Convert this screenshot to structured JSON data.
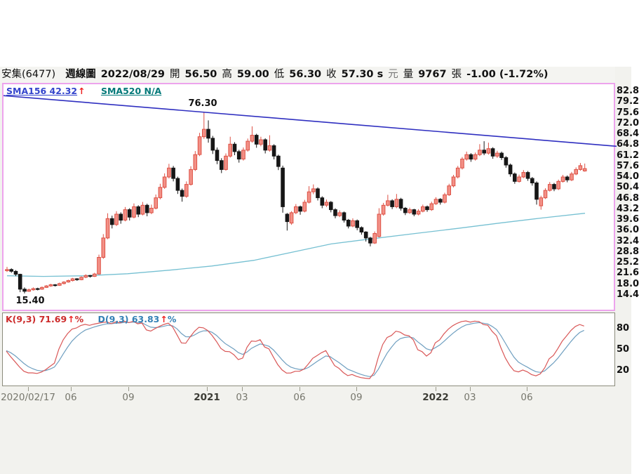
{
  "header": {
    "segments": [
      {
        "text": "安集(6477)",
        "bold": false
      },
      {
        "text": "週線圖",
        "bold": true
      },
      {
        "text": "2022/08/29",
        "bold": true
      },
      {
        "text": "開",
        "bold": false
      },
      {
        "text": "56.50",
        "bold": true
      },
      {
        "text": "高",
        "bold": false
      },
      {
        "text": "59.00",
        "bold": true
      },
      {
        "text": "低",
        "bold": false
      },
      {
        "text": "56.30",
        "bold": true
      },
      {
        "text": "收",
        "bold": false
      },
      {
        "text": "57.30 s",
        "bold": true
      },
      {
        "text": "元",
        "bold": false,
        "dim": true
      },
      {
        "text": "量",
        "bold": false
      },
      {
        "text": "9767",
        "bold": true
      },
      {
        "text": "張",
        "bold": false
      },
      {
        "text": "-1.00 (-1.72%)",
        "bold": true
      }
    ]
  },
  "overlays": {
    "sma156_label": "SMA156 42.32",
    "sma156_arrow": "↑",
    "sma520_label": "SMA520 N/A",
    "k_label": "K(9,3) 71.69",
    "k_arrow": "↑",
    "k_suffix": "%",
    "d_label": "D(9,3) 63.83",
    "d_arrow": "↑",
    "d_suffix": "%",
    "annotation_high": "76.30",
    "annotation_low": "15.40"
  },
  "colors": {
    "up_fill": "#f29086",
    "up_stroke": "#dd5044",
    "down_fill": "#161616",
    "down_stroke": "#161616",
    "sma_line": "#76c0d2",
    "trend_line": "#2f2fc0",
    "k_line": "#d95757",
    "d_line": "#6f9fc0",
    "chart_border": "#eda3ed",
    "kd_border": "#8b8b7c"
  },
  "chart_data": {
    "type": "candlestick",
    "symbol": "安集(6477)",
    "period": "週線圖",
    "last_date": "2022/08/29",
    "last_bar": {
      "open": 56.5,
      "high": 59.0,
      "low": 56.3,
      "close": 57.3,
      "volume_lots": 9767,
      "change": -1.0,
      "change_pct": -1.72
    },
    "series_high": 76.3,
    "series_low": 15.4,
    "price_axis_ticks": [
      82.8,
      79.2,
      75.6,
      72.0,
      68.4,
      64.8,
      61.2,
      57.6,
      54.0,
      50.4,
      46.8,
      43.2,
      39.6,
      36.0,
      32.4,
      28.8,
      25.2,
      21.6,
      18.0,
      14.4
    ],
    "kd_axis_ticks": [
      80,
      50,
      20
    ],
    "x_ticks": [
      {
        "label": "2020/02/17",
        "x": 40,
        "bold": false
      },
      {
        "label": "06",
        "x": 101,
        "bold": false
      },
      {
        "label": "09",
        "x": 183,
        "bold": false
      },
      {
        "label": "2021",
        "x": 295,
        "bold": true
      },
      {
        "label": "03",
        "x": 345,
        "bold": false
      },
      {
        "label": "06",
        "x": 427,
        "bold": false
      },
      {
        "label": "09",
        "x": 508,
        "bold": false
      },
      {
        "label": "2022",
        "x": 621,
        "bold": true
      },
      {
        "label": "03",
        "x": 670,
        "bold": false
      },
      {
        "label": "06",
        "x": 751,
        "bold": false
      }
    ],
    "candles_ohlc": [
      [
        23.0,
        24.3,
        22.6,
        23.4
      ],
      [
        23.4,
        23.8,
        22.3,
        22.8
      ],
      [
        22.8,
        23.2,
        21.2,
        21.8
      ],
      [
        21.8,
        22.0,
        15.8,
        16.8
      ],
      [
        16.8,
        17.4,
        15.4,
        16.1
      ],
      [
        16.1,
        17.0,
        15.9,
        16.6
      ],
      [
        16.6,
        17.4,
        16.3,
        17.0
      ],
      [
        17.0,
        17.3,
        16.4,
        16.8
      ],
      [
        16.8,
        17.7,
        16.6,
        17.4
      ],
      [
        17.4,
        18.2,
        17.2,
        17.9
      ],
      [
        17.9,
        18.6,
        17.6,
        18.3
      ],
      [
        18.3,
        18.5,
        17.7,
        18.1
      ],
      [
        18.1,
        19.0,
        17.9,
        18.7
      ],
      [
        18.7,
        19.5,
        18.4,
        19.2
      ],
      [
        19.2,
        20.0,
        19.0,
        19.7
      ],
      [
        19.7,
        20.6,
        19.4,
        20.3
      ],
      [
        20.3,
        20.5,
        19.6,
        20.0
      ],
      [
        20.0,
        21.1,
        19.8,
        20.8
      ],
      [
        20.8,
        21.8,
        20.5,
        21.4
      ],
      [
        21.4,
        21.6,
        20.7,
        21.1
      ],
      [
        21.1,
        22.3,
        20.9,
        21.9
      ],
      [
        21.9,
        28.4,
        21.7,
        27.5
      ],
      [
        27.5,
        35.3,
        27.0,
        34.0
      ],
      [
        34.0,
        42.3,
        33.6,
        40.5
      ],
      [
        40.5,
        41.5,
        37.2,
        38.5
      ],
      [
        38.5,
        43.0,
        38.0,
        42.0
      ],
      [
        42.0,
        42.6,
        38.8,
        40.0
      ],
      [
        40.0,
        44.4,
        39.6,
        43.5
      ],
      [
        43.5,
        44.0,
        39.9,
        41.0
      ],
      [
        41.0,
        45.6,
        40.6,
        44.5
      ],
      [
        44.5,
        45.0,
        41.0,
        42.0
      ],
      [
        42.0,
        46.1,
        41.6,
        45.0
      ],
      [
        45.0,
        45.5,
        41.3,
        42.5
      ],
      [
        42.5,
        45.2,
        42.0,
        44.0
      ],
      [
        44.0,
        48.6,
        43.6,
        47.5
      ],
      [
        47.5,
        52.2,
        47.0,
        51.0
      ],
      [
        51.0,
        55.7,
        50.5,
        54.5
      ],
      [
        54.5,
        58.9,
        54.0,
        57.5
      ],
      [
        57.5,
        58.2,
        53.0,
        54.0
      ],
      [
        54.0,
        54.6,
        48.8,
        50.0
      ],
      [
        50.0,
        50.6,
        46.2,
        48.0
      ],
      [
        48.0,
        53.0,
        47.5,
        52.0
      ],
      [
        52.0,
        58.1,
        51.6,
        57.0
      ],
      [
        57.0,
        63.2,
        56.5,
        62.0
      ],
      [
        62.0,
        69.3,
        61.5,
        68.0
      ],
      [
        68.0,
        76.3,
        67.3,
        70.5
      ],
      [
        70.5,
        73.5,
        66.0,
        67.5
      ],
      [
        67.5,
        68.3,
        62.2,
        63.5
      ],
      [
        63.5,
        64.4,
        58.8,
        60.0
      ],
      [
        60.0,
        60.8,
        55.8,
        57.0
      ],
      [
        57.0,
        62.4,
        56.6,
        61.5
      ],
      [
        61.5,
        68.0,
        61.0,
        65.5
      ],
      [
        65.5,
        66.2,
        61.8,
        63.0
      ],
      [
        63.0,
        63.6,
        59.3,
        60.5
      ],
      [
        60.5,
        64.4,
        60.0,
        63.5
      ],
      [
        63.5,
        67.4,
        63.0,
        66.5
      ],
      [
        66.5,
        71.5,
        66.0,
        68.5
      ],
      [
        68.5,
        69.0,
        64.3,
        65.5
      ],
      [
        65.5,
        68.0,
        64.8,
        67.0
      ],
      [
        67.0,
        67.5,
        62.4,
        63.5
      ],
      [
        63.5,
        68.5,
        63.0,
        65.0
      ],
      [
        65.0,
        65.5,
        60.4,
        61.5
      ],
      [
        61.5,
        62.0,
        56.8,
        58.0
      ],
      [
        57.5,
        58.3,
        42.5,
        44.5
      ],
      [
        42.0,
        42.4,
        36.5,
        39.5
      ],
      [
        39.0,
        43.0,
        38.4,
        42.5
      ],
      [
        42.5,
        45.4,
        42.0,
        44.5
      ],
      [
        44.5,
        44.9,
        41.8,
        43.0
      ],
      [
        43.0,
        46.8,
        42.6,
        46.0
      ],
      [
        46.0,
        51.4,
        45.6,
        49.5
      ],
      [
        49.5,
        52.0,
        48.7,
        50.5
      ],
      [
        50.5,
        51.0,
        46.6,
        47.5
      ],
      [
        47.5,
        48.0,
        44.0,
        45.0
      ],
      [
        45.0,
        46.9,
        44.4,
        46.0
      ],
      [
        46.0,
        46.4,
        42.6,
        43.5
      ],
      [
        43.5,
        44.0,
        40.6,
        41.5
      ],
      [
        41.5,
        43.3,
        41.0,
        42.5
      ],
      [
        42.5,
        42.9,
        39.2,
        40.0
      ],
      [
        40.0,
        40.4,
        37.2,
        38.0
      ],
      [
        38.0,
        40.6,
        37.6,
        39.8
      ],
      [
        39.8,
        40.2,
        36.6,
        37.5
      ],
      [
        37.5,
        37.9,
        35.1,
        36.0
      ],
      [
        36.0,
        36.3,
        32.8,
        34.0
      ],
      [
        34.0,
        34.4,
        31.2,
        32.3
      ],
      [
        32.3,
        36.2,
        32.0,
        35.5
      ],
      [
        34.5,
        44.0,
        34.2,
        42.0
      ],
      [
        42.0,
        45.8,
        41.5,
        45.0
      ],
      [
        45.0,
        48.5,
        44.6,
        46.5
      ],
      [
        46.5,
        47.0,
        43.7,
        44.5
      ],
      [
        44.5,
        48.8,
        44.0,
        47.0
      ],
      [
        47.0,
        47.5,
        43.2,
        44.0
      ],
      [
        44.0,
        44.4,
        41.7,
        42.5
      ],
      [
        42.5,
        44.2,
        42.1,
        43.5
      ],
      [
        43.5,
        43.8,
        41.3,
        42.0
      ],
      [
        42.0,
        43.7,
        41.6,
        43.0
      ],
      [
        43.0,
        45.2,
        42.6,
        44.5
      ],
      [
        44.5,
        44.9,
        42.8,
        43.5
      ],
      [
        43.5,
        46.2,
        43.1,
        45.5
      ],
      [
        45.5,
        47.7,
        45.1,
        47.0
      ],
      [
        47.0,
        47.4,
        45.2,
        46.0
      ],
      [
        46.0,
        49.2,
        45.6,
        48.5
      ],
      [
        48.5,
        52.2,
        48.1,
        51.5
      ],
      [
        51.5,
        55.2,
        51.0,
        54.5
      ],
      [
        54.5,
        58.2,
        54.0,
        57.5
      ],
      [
        57.5,
        61.2,
        57.0,
        60.5
      ],
      [
        60.5,
        63.0,
        60.0,
        62.0
      ],
      [
        62.0,
        62.5,
        59.6,
        60.5
      ],
      [
        60.5,
        62.7,
        60.0,
        62.0
      ],
      [
        62.0,
        65.5,
        61.5,
        63.5
      ],
      [
        63.5,
        66.5,
        61.8,
        62.5
      ],
      [
        62.5,
        66.0,
        62.0,
        64.0
      ],
      [
        64.0,
        64.5,
        60.6,
        61.5
      ],
      [
        61.5,
        63.3,
        60.9,
        62.5
      ],
      [
        62.5,
        63.0,
        60.2,
        61.0
      ],
      [
        61.0,
        61.5,
        57.6,
        58.5
      ],
      [
        58.5,
        59.0,
        54.6,
        55.5
      ],
      [
        55.5,
        56.0,
        52.2,
        53.0
      ],
      [
        53.0,
        55.3,
        52.6,
        54.5
      ],
      [
        54.5,
        56.8,
        54.1,
        56.0
      ],
      [
        56.0,
        56.5,
        53.2,
        54.0
      ],
      [
        54.0,
        54.5,
        51.6,
        52.5
      ],
      [
        52.5,
        53.0,
        45.2,
        47.0
      ],
      [
        44.8,
        48.2,
        43.5,
        47.5
      ],
      [
        47.5,
        50.7,
        47.1,
        50.0
      ],
      [
        50.0,
        52.8,
        49.6,
        52.0
      ],
      [
        52.0,
        52.5,
        49.7,
        50.5
      ],
      [
        50.5,
        53.6,
        50.1,
        53.0
      ],
      [
        53.0,
        55.2,
        52.6,
        54.5
      ],
      [
        54.5,
        55.0,
        52.7,
        53.5
      ],
      [
        53.5,
        56.2,
        53.1,
        55.5
      ],
      [
        55.5,
        57.7,
        55.1,
        57.0
      ],
      [
        57.0,
        59.2,
        56.6,
        58.3
      ],
      [
        56.5,
        59.0,
        56.3,
        57.3
      ]
    ],
    "sma156": {
      "last_value": 42.32,
      "points_x_price": [
        [
          8,
          21.3
        ],
        [
          60,
          21.1
        ],
        [
          120,
          21.3
        ],
        [
          180,
          22.0
        ],
        [
          240,
          23.2
        ],
        [
          300,
          24.6
        ],
        [
          360,
          26.5
        ],
        [
          420,
          29.5
        ],
        [
          470,
          32.0
        ],
        [
          530,
          33.8
        ],
        [
          590,
          35.5
        ],
        [
          650,
          37.2
        ],
        [
          710,
          39.0
        ],
        [
          770,
          40.7
        ],
        [
          832,
          42.3
        ]
      ]
    },
    "sma520": {
      "last_value": null
    },
    "trendline": {
      "x1": 0,
      "price1": 81.8,
      "x2": 874,
      "price2": 64.8
    },
    "kd": {
      "params": "(9,3)",
      "k_last": 71.69,
      "d_last": 63.83,
      "axis_range": [
        0,
        100
      ]
    }
  }
}
